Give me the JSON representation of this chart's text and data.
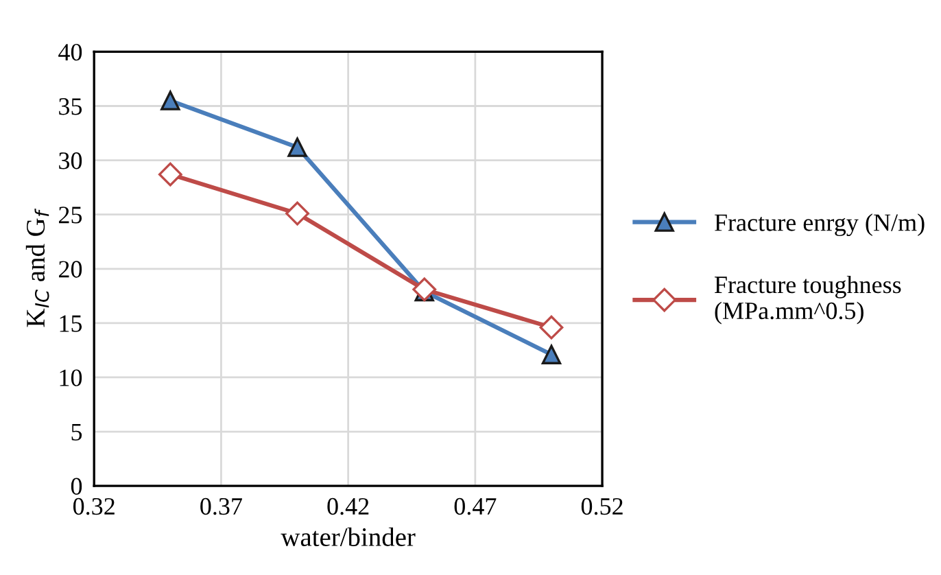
{
  "chart_data": {
    "type": "line",
    "xlabel": "water/binder",
    "ylabel": "K$_{IC}$ and G$_{f}$",
    "x": [
      0.35,
      0.4,
      0.45,
      0.5
    ],
    "series": [
      {
        "name": "Fracture enrgy (N/m)",
        "color": "#4a7ebb",
        "marker": "triangle",
        "values": [
          35.5,
          31.2,
          17.9,
          12.1
        ]
      },
      {
        "name": "Fracture toughness\n(MPa.mm^0.5)",
        "color": "#be4b48",
        "marker": "diamond",
        "values": [
          28.7,
          25.1,
          18.1,
          14.6
        ]
      }
    ],
    "xlim": [
      0.32,
      0.52
    ],
    "xticks": [
      0.32,
      0.37,
      0.42,
      0.47,
      0.52
    ],
    "ylim": [
      0,
      40
    ],
    "yticks": [
      0,
      5,
      10,
      15,
      20,
      25,
      30,
      35,
      40
    ],
    "grid": true,
    "legend": "right",
    "line_style": "solid"
  }
}
